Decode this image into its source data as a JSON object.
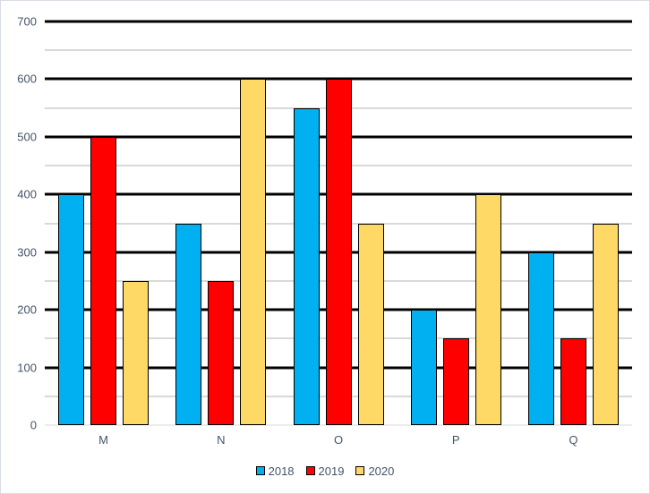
{
  "chart_data": {
    "type": "bar",
    "title": "",
    "xlabel": "",
    "ylabel": "",
    "categories": [
      "M",
      "N",
      "O",
      "P",
      "Q"
    ],
    "series": [
      {
        "name": "2018",
        "color": "#00B0F0",
        "values": [
          400,
          350,
          550,
          200,
          300
        ]
      },
      {
        "name": "2019",
        "color": "#FF0000",
        "values": [
          500,
          250,
          600,
          150,
          150
        ]
      },
      {
        "name": "2020",
        "color": "#FFD966",
        "values": [
          250,
          600,
          350,
          400,
          350
        ]
      }
    ],
    "ylim": [
      0,
      700
    ],
    "yticks": [
      0,
      100,
      200,
      300,
      400,
      500,
      600,
      700
    ],
    "y_major_step": 100,
    "y_minor_step": 50,
    "grid": true,
    "legend_position": "bottom"
  },
  "colors": {
    "background": "#FFFFFF",
    "frame_border": "#D8DCE4",
    "major_gridline": "#000000",
    "minor_gridline": "#B3B3B3",
    "axis_baseline": "#D9D9D9",
    "bar_border": "#000000",
    "label_text": "#44546A"
  }
}
